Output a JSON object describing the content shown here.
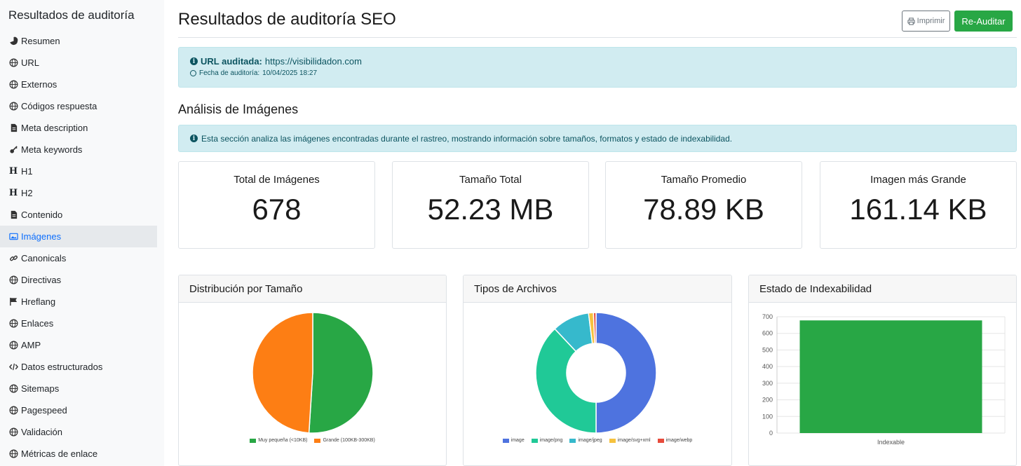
{
  "sidebar": {
    "title": "Resultados de auditoría",
    "items": [
      {
        "label": "Resumen",
        "icon": "pie-chart-icon"
      },
      {
        "label": "URL",
        "icon": "globe-icon"
      },
      {
        "label": "Externos",
        "icon": "globe-icon"
      },
      {
        "label": "Códigos respuesta",
        "icon": "globe-icon"
      },
      {
        "label": "Meta description",
        "icon": "file-icon"
      },
      {
        "label": "Meta keywords",
        "icon": "key-icon"
      },
      {
        "label": "H1",
        "icon": "heading-icon"
      },
      {
        "label": "H2",
        "icon": "heading-icon"
      },
      {
        "label": "Contenido",
        "icon": "file-icon"
      },
      {
        "label": "Imágenes",
        "icon": "images-icon",
        "active": true
      },
      {
        "label": "Canonicals",
        "icon": "link-icon"
      },
      {
        "label": "Directivas",
        "icon": "globe-icon"
      },
      {
        "label": "Hreflang",
        "icon": "flag-icon"
      },
      {
        "label": "Enlaces",
        "icon": "globe-icon"
      },
      {
        "label": "AMP",
        "icon": "globe-icon"
      },
      {
        "label": "Datos estructurados",
        "icon": "code-icon"
      },
      {
        "label": "Sitemaps",
        "icon": "globe-icon"
      },
      {
        "label": "Pagespeed",
        "icon": "globe-icon"
      },
      {
        "label": "Validación",
        "icon": "globe-icon"
      },
      {
        "label": "Métricas de enlace",
        "icon": "globe-icon"
      }
    ]
  },
  "header": {
    "title": "Resultados de auditoría SEO",
    "print_label": "Imprimir",
    "reaudit_label": "Re-Auditar"
  },
  "audit": {
    "url_label": "URL auditada:",
    "url": "https://visibilidadon.com",
    "date_label": "Fecha de auditoría:",
    "date": "10/04/2025 18:27"
  },
  "section": {
    "title": "Análisis de Imágenes",
    "info": "Esta sección analiza las imágenes encontradas durante el rastreo, mostrando información sobre tamaños, formatos y estado de indexabilidad."
  },
  "stats": [
    {
      "label": "Total de Imágenes",
      "value": "678"
    },
    {
      "label": "Tamaño Total",
      "value": "52.23 MB"
    },
    {
      "label": "Tamaño Promedio",
      "value": "78.89 KB"
    },
    {
      "label": "Imagen más Grande",
      "value": "161.14 KB"
    }
  ],
  "cards": {
    "size": "Distribución por Tamaño",
    "types": "Tipos de Archivos",
    "index": "Estado de Indexabilidad"
  },
  "colors": {
    "green": "#28a745",
    "orange": "#fd7e14",
    "blue": "#4e73df",
    "teal": "#20c997",
    "cyan": "#36b9cc",
    "yellow": "#f6c23e",
    "red": "#e74a3b"
  },
  "chart_data": [
    {
      "type": "pie",
      "categories": [
        "Muy pequeña (<10KB)",
        "Grande (100KB-300KB)"
      ],
      "values": [
        51,
        49
      ],
      "colors": [
        "#28a745",
        "#fd7e14"
      ]
    },
    {
      "type": "pie",
      "donut": true,
      "categories": [
        "image",
        "image/png",
        "image/jpeg",
        "image/svg+xml",
        "image/webp"
      ],
      "values": [
        50,
        38,
        10,
        1.3,
        0.7
      ],
      "colors": [
        "#4e73df",
        "#20c997",
        "#36b9cc",
        "#f6c23e",
        "#e74a3b"
      ]
    },
    {
      "type": "bar",
      "categories": [
        "Indexable"
      ],
      "values": [
        678
      ],
      "ylim": [
        0,
        700
      ],
      "yticks": [
        0,
        100,
        200,
        300,
        400,
        500,
        600,
        700
      ],
      "color": "#28a745",
      "grid": true
    }
  ]
}
